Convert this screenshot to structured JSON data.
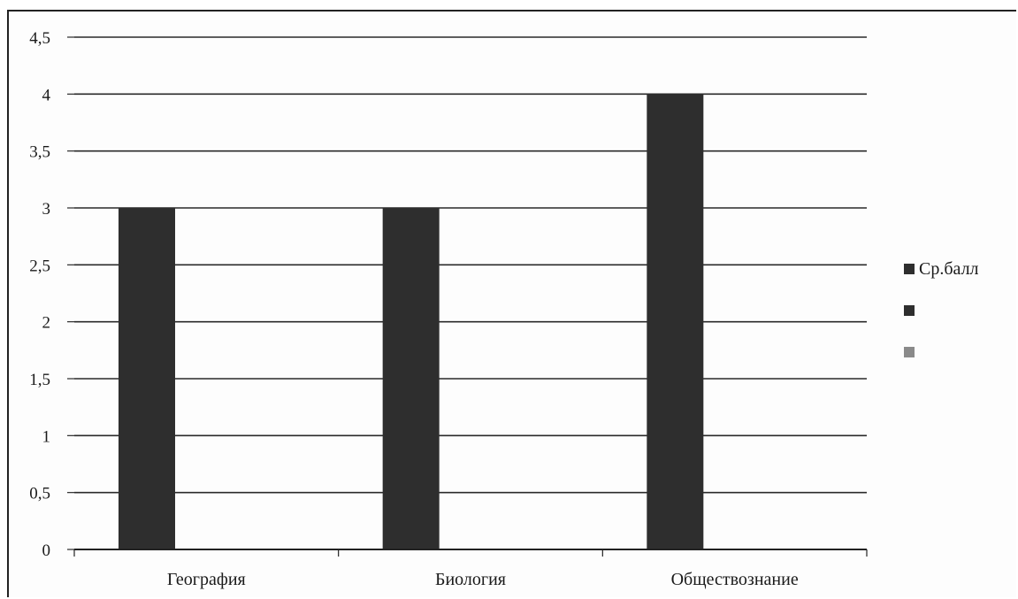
{
  "chart_data": {
    "type": "bar",
    "categories": [
      "География",
      "Биология",
      "Обществознание"
    ],
    "series": [
      {
        "name": "Ср.балл",
        "values": [
          3,
          3,
          4
        ]
      }
    ],
    "ylim": [
      0,
      4.5
    ],
    "yticks": [
      "0",
      "0,5",
      "1",
      "1,5",
      "2",
      "2,5",
      "3",
      "3,5",
      "4",
      "4,5"
    ],
    "grid": true,
    "legend_position": "right",
    "legend": [
      {
        "label": "Ср.балл",
        "color": "#2e2e2e"
      },
      {
        "label": "",
        "color": "#2e2e2e"
      },
      {
        "label": "",
        "color": "#8a8a8a"
      }
    ],
    "bar_color": "#2e2e2e"
  }
}
